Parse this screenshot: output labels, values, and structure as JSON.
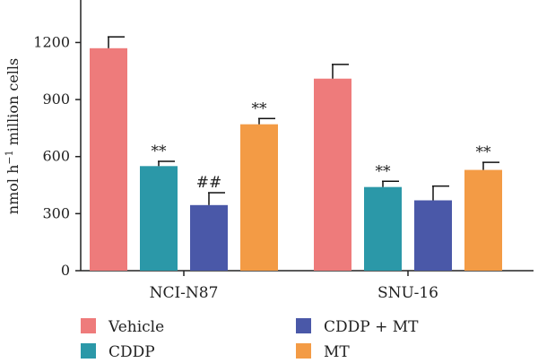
{
  "chart_data": {
    "type": "bar",
    "ylabel": "nmol h⁻¹ million cells",
    "ylabel_parts": [
      "nmol h",
      "−1",
      " million cells"
    ],
    "ylim": [
      0,
      1400
    ],
    "yticks": [
      "0",
      "300",
      "600",
      "900",
      "1200"
    ],
    "ytick_values": [
      0,
      300,
      600,
      900,
      1200
    ],
    "categories": [
      "NCI-N87",
      "SNU-16"
    ],
    "series": [
      {
        "name": "Vehicle",
        "color": "#ee7b7b",
        "values": [
          1170,
          1010
        ],
        "errors": [
          60,
          75
        ],
        "annotations": [
          "",
          ""
        ]
      },
      {
        "name": "CDDP",
        "color": "#2b98a8",
        "values": [
          550,
          440
        ],
        "errors": [
          25,
          30
        ],
        "annotations": [
          "**",
          "**"
        ]
      },
      {
        "name": "CDDP + MT",
        "color": "#4a58a8",
        "values": [
          345,
          370
        ],
        "errors": [
          65,
          75
        ],
        "annotations": [
          "##",
          ""
        ]
      },
      {
        "name": "MT",
        "color": "#f39b45",
        "values": [
          770,
          530
        ],
        "errors": [
          30,
          40
        ],
        "annotations": [
          "**",
          "**"
        ]
      }
    ],
    "legend_placement": "bottom",
    "grid": false
  }
}
